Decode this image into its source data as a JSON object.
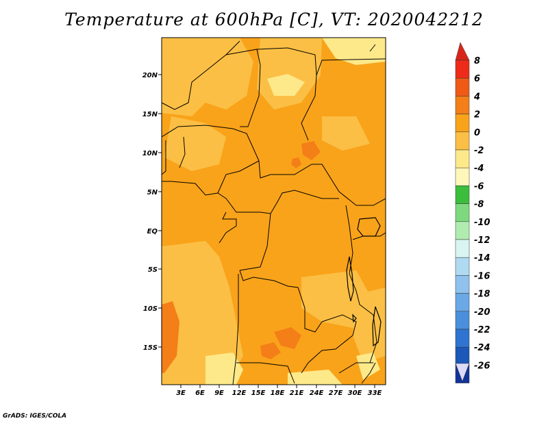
{
  "title": "Temperature at 600hPa [C], VT: 2020042212",
  "credit": "GrADS: IGES/COLA",
  "map": {
    "lat_labels": [
      "20N",
      "15N",
      "10N",
      "5N",
      "EQ",
      "5S",
      "10S",
      "15S"
    ],
    "lon_labels": [
      "3E",
      "6E",
      "9E",
      "12E",
      "15E",
      "18E",
      "21E",
      "24E",
      "27E",
      "30E",
      "33E"
    ],
    "colors": {
      "light_yellow": "#fde98a",
      "yellow_orange": "#fbbf45",
      "orange": "#f9a31a",
      "dark_orange": "#f47e17",
      "border": "#000000"
    }
  },
  "colorbar": {
    "labels": [
      "8",
      "6",
      "4",
      "2",
      "0",
      "-2",
      "-4",
      "-6",
      "-8",
      "-10",
      "-12",
      "-14",
      "-16",
      "-18",
      "-20",
      "-22",
      "-24",
      "-26"
    ],
    "colors": [
      "#ee2b1a",
      "#f05a17",
      "#f47e17",
      "#f9a31a",
      "#fbbf45",
      "#fde98a",
      "#fff7b9",
      "#3cbe3c",
      "#7ed97e",
      "#b0ecb0",
      "#d8f5f2",
      "#b0daf2",
      "#8fc2ee",
      "#6aa8e6",
      "#4a8fdc",
      "#2f74d0",
      "#1c58b8",
      "#12349a"
    ],
    "top_arrow_color": "#d8271a",
    "bottom_arrow_color": "#dcdcf8"
  }
}
